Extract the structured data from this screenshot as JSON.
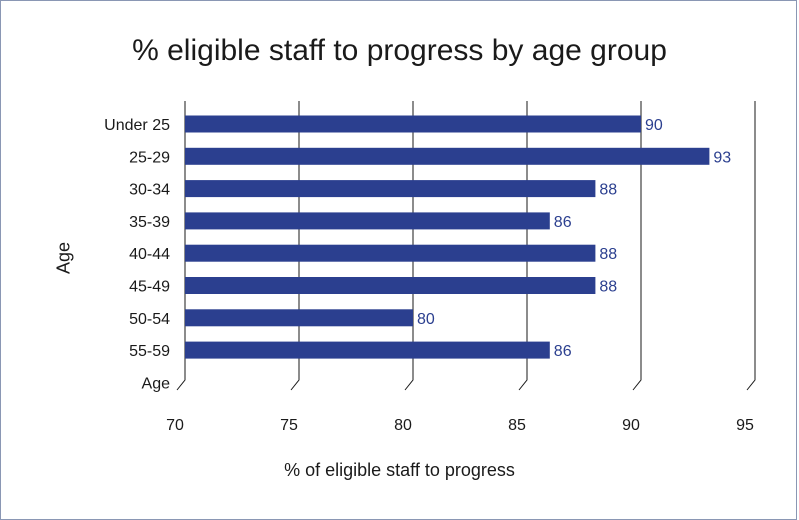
{
  "chart_data": {
    "type": "bar",
    "orientation": "horizontal",
    "title": "% eligible staff to progress by age group",
    "xlabel": "% of eligible staff to progress",
    "ylabel": "Age",
    "categories": [
      "Under 25",
      "25-29",
      "30-34",
      "35-39",
      "40-44",
      "45-49",
      "50-54",
      "55-59",
      "Age"
    ],
    "values": [
      90,
      93,
      88,
      86,
      88,
      88,
      80,
      86,
      null
    ],
    "data_labels": [
      "90",
      "93",
      "88",
      "86",
      "88",
      "88",
      "80",
      "86",
      ""
    ],
    "xlim": [
      70,
      95
    ],
    "xticks": [
      "70",
      "75",
      "80",
      "85",
      "90",
      "95"
    ],
    "grid": true,
    "bar_color": "#2b3f8f",
    "label_color": "#2b3f8f"
  }
}
